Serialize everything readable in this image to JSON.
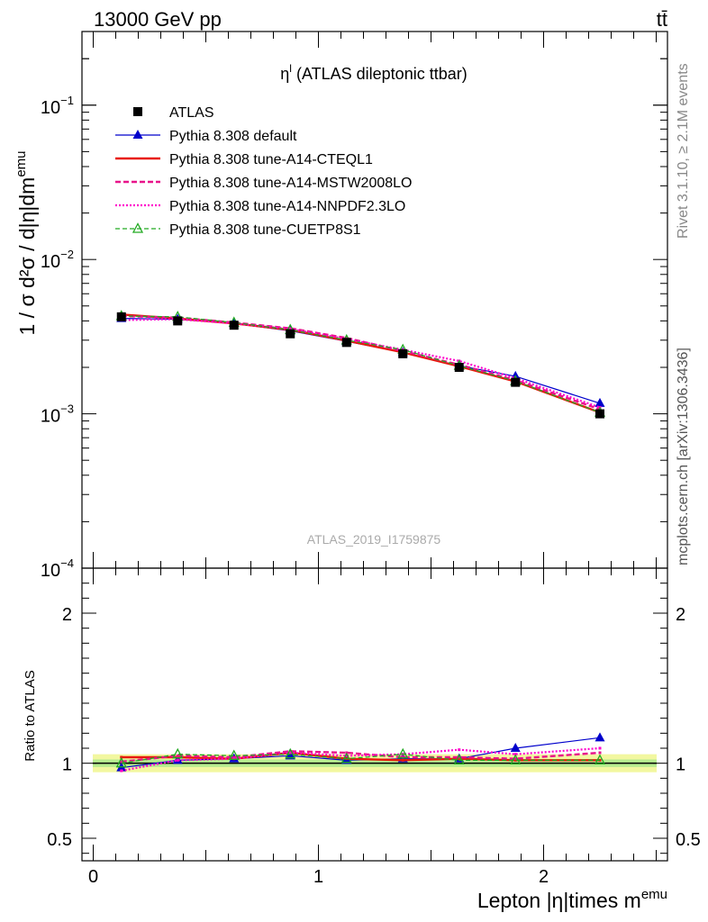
{
  "header": {
    "energy": "13000 GeV pp",
    "process": "tt̄"
  },
  "title_prefix": "η",
  "title_sup": "l",
  "title_rest": " (ATLAS dileptonic ttbar)",
  "watermark": "ATLAS_2019_I1759875",
  "side_labels": {
    "rivet": "Rivet 3.1.10, ≥ 2.1M events",
    "mcplots": "mcplots.cern.ch [arXiv:1306.3436]"
  },
  "y_axis": {
    "main_label": "1 / σ  d²σ / d|η|dm",
    "main_label_sup": "emu",
    "ratio_label": "Ratio to ATLAS"
  },
  "x_axis": {
    "label": "Lepton |η|times m",
    "label_sup": "emu"
  },
  "chart_data": [
    {
      "type": "line",
      "panel": "main",
      "scale": "log",
      "ylim": [
        0.0001,
        0.3
      ],
      "xlim": [
        -0.05,
        2.55
      ],
      "ytick_labels": [
        {
          "value": 0.1,
          "base": "10",
          "exp": "−1"
        },
        {
          "value": 0.01,
          "base": "10",
          "exp": "−2"
        },
        {
          "value": 0.001,
          "base": "10",
          "exp": "−3"
        },
        {
          "value": 0.0001,
          "base": "10",
          "exp": "−4"
        }
      ],
      "x": [
        0.125,
        0.375,
        0.625,
        0.875,
        1.125,
        1.375,
        1.625,
        1.875,
        2.25
      ],
      "series": [
        {
          "name": "ATLAS",
          "color": "#000000",
          "style": "square-markers",
          "values": [
            0.00425,
            0.004,
            0.00375,
            0.0033,
            0.0029,
            0.00245,
            0.002,
            0.0016,
            0.001
          ]
        },
        {
          "name": "Pythia 8.308 default",
          "color": "#0000cc",
          "style": "solid-triangle",
          "values": [
            0.00415,
            0.0041,
            0.00385,
            0.00345,
            0.00295,
            0.0025,
            0.00205,
            0.00175,
            0.00117
          ]
        },
        {
          "name": "Pythia 8.308 tune-A14-CTEQL1",
          "color": "#e8180c",
          "style": "solid-thick",
          "values": [
            0.0044,
            0.00415,
            0.00385,
            0.0035,
            0.00298,
            0.0025,
            0.00203,
            0.00162,
            0.00102
          ]
        },
        {
          "name": "Pythia 8.308 tune-A14-MSTW2008LO",
          "color": "#e8128a",
          "style": "dashed",
          "values": [
            0.0043,
            0.0042,
            0.0039,
            0.00358,
            0.0031,
            0.00255,
            0.00208,
            0.00165,
            0.00107
          ]
        },
        {
          "name": "Pythia 8.308 tune-A14-NNPDF2.3LO",
          "color": "#ff00cc",
          "style": "dotted",
          "values": [
            0.00405,
            0.0041,
            0.00385,
            0.00355,
            0.00305,
            0.0026,
            0.0022,
            0.0017,
            0.0011
          ]
        },
        {
          "name": "Pythia 8.308 tune-CUETP8S1",
          "color": "#22aa22",
          "style": "dashed-open-triangle",
          "values": [
            0.0043,
            0.00425,
            0.0039,
            0.0035,
            0.003,
            0.0026,
            0.00205,
            0.00163,
            0.00102
          ]
        }
      ]
    },
    {
      "type": "line",
      "panel": "ratio",
      "ylim": [
        0.35,
        2.3
      ],
      "xlim": [
        -0.05,
        2.55
      ],
      "yticks": [
        0.5,
        1,
        2
      ],
      "ytick_labels": [
        "0.5",
        "1",
        "2"
      ],
      "xticks": [
        0,
        1,
        2
      ],
      "xtick_labels": [
        "0",
        "1",
        "2"
      ],
      "band": {
        "inner": 0.025,
        "outer": 0.06
      },
      "x": [
        0.125,
        0.375,
        0.625,
        0.875,
        1.125,
        1.375,
        1.625,
        1.875,
        2.25
      ],
      "series": [
        {
          "name": "Pythia 8.308 default",
          "values": [
            0.97,
            1.02,
            1.03,
            1.05,
            1.02,
            1.03,
            1.03,
            1.1,
            1.17
          ]
        },
        {
          "name": "Pythia 8.308 tune-A14-CTEQL1",
          "values": [
            1.04,
            1.04,
            1.03,
            1.07,
            1.03,
            1.02,
            1.03,
            1.02,
            1.02
          ]
        },
        {
          "name": "Pythia 8.308 tune-A14-MSTW2008LO",
          "values": [
            1.01,
            1.05,
            1.04,
            1.08,
            1.07,
            1.04,
            1.04,
            1.03,
            1.07
          ]
        },
        {
          "name": "Pythia 8.308 tune-A14-NNPDF2.3LO",
          "values": [
            0.95,
            1.02,
            1.03,
            1.07,
            1.05,
            1.06,
            1.09,
            1.06,
            1.1
          ]
        },
        {
          "name": "Pythia 8.308 tune-CUETP8S1",
          "values": [
            1.0,
            1.06,
            1.05,
            1.06,
            1.03,
            1.06,
            1.02,
            1.02,
            1.02
          ]
        }
      ]
    }
  ]
}
